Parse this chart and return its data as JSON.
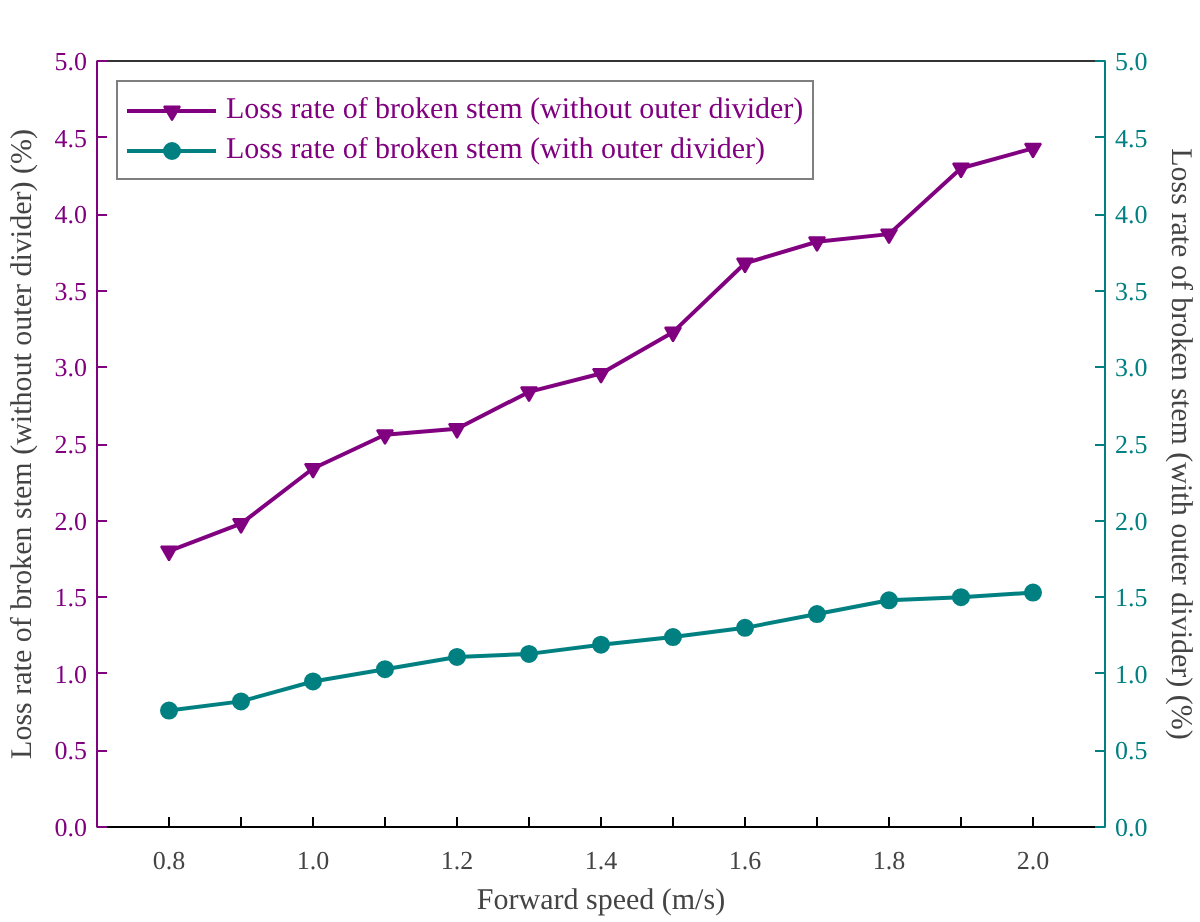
{
  "chart_data": {
    "type": "line",
    "xlabel": "Forward speed (m/s)",
    "ylabel": "Loss rate of broken stem (without outer divider) (%)",
    "y2label": "Loss rate of broken stem (with outer divider) (%)",
    "x": [
      0.8,
      0.9,
      1.0,
      1.1,
      1.2,
      1.3,
      1.4,
      1.5,
      1.6,
      1.7,
      1.8,
      1.9,
      2.0
    ],
    "series": [
      {
        "name": "Loss rate of broken stem (without outer divider)",
        "color": "#800080",
        "marker": "triangle",
        "values": [
          1.8,
          1.98,
          2.34,
          2.56,
          2.6,
          2.84,
          2.96,
          3.23,
          3.68,
          3.82,
          3.87,
          4.3,
          4.43
        ]
      },
      {
        "name": "Loss rate of broken stem (with outer divider)",
        "color": "#008080",
        "marker": "circle",
        "axis": "y2",
        "values": [
          0.76,
          0.82,
          0.95,
          1.03,
          1.11,
          1.13,
          1.19,
          1.24,
          1.3,
          1.39,
          1.48,
          1.5,
          1.53
        ]
      }
    ],
    "xlim": [
      0.7,
      2.1
    ],
    "xticks": [
      {
        "value": 0.8,
        "label": "0.8"
      },
      {
        "value": 0.9,
        "label": null
      },
      {
        "value": 1.0,
        "label": "1.0"
      },
      {
        "value": 1.1,
        "label": null
      },
      {
        "value": 1.2,
        "label": "1.2"
      },
      {
        "value": 1.3,
        "label": null
      },
      {
        "value": 1.4,
        "label": "1.4"
      },
      {
        "value": 1.5,
        "label": null
      },
      {
        "value": 1.6,
        "label": "1.6"
      },
      {
        "value": 1.7,
        "label": null
      },
      {
        "value": 1.8,
        "label": "1.8"
      },
      {
        "value": 1.9,
        "label": null
      },
      {
        "value": 2.0,
        "label": "2.0"
      }
    ],
    "ylim": [
      0,
      5
    ],
    "yticks": [
      {
        "value": 0,
        "label": "0.0"
      },
      {
        "value": 0.5,
        "label": "0.5"
      },
      {
        "value": 1,
        "label": "1.0"
      },
      {
        "value": 1.5,
        "label": "1.5"
      },
      {
        "value": 2,
        "label": "2.0"
      },
      {
        "value": 2.5,
        "label": "2.5"
      },
      {
        "value": 3,
        "label": "3.0"
      },
      {
        "value": 3.5,
        "label": "3.5"
      },
      {
        "value": 4,
        "label": "4.0"
      },
      {
        "value": 4.5,
        "label": "4.5"
      },
      {
        "value": 5,
        "label": "5.0"
      }
    ],
    "y2lim": [
      0,
      5
    ],
    "y2ticks": [
      {
        "value": 0,
        "label": "0.0"
      },
      {
        "value": 0.5,
        "label": "0.5"
      },
      {
        "value": 1,
        "label": "1.0"
      },
      {
        "value": 1.5,
        "label": "1.5"
      },
      {
        "value": 2,
        "label": "2.0"
      },
      {
        "value": 2.5,
        "label": "2.5"
      },
      {
        "value": 3,
        "label": "3.0"
      },
      {
        "value": 3.5,
        "label": "3.5"
      },
      {
        "value": 4,
        "label": "4.0"
      },
      {
        "value": 4.5,
        "label": "4.5"
      },
      {
        "value": 5,
        "label": "5.0"
      }
    ],
    "grid": false,
    "legend": "top left",
    "line_style": "solid"
  }
}
